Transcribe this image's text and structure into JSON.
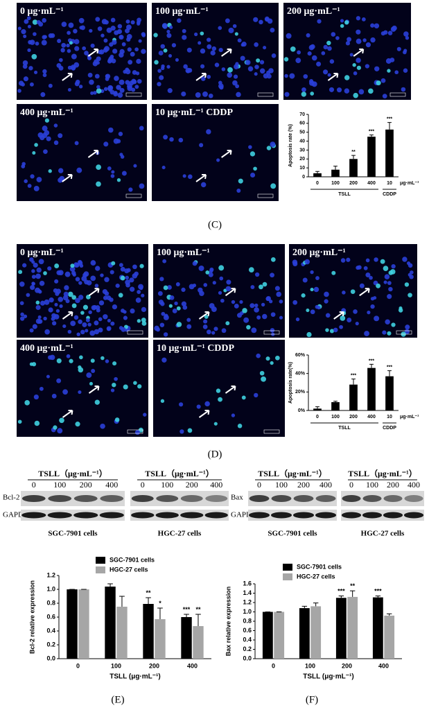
{
  "micrographs_c": {
    "labels": [
      "0 μg·mL⁻¹",
      "100 μg·mL⁻¹",
      "200 μg·mL⁻¹",
      "400 μg·mL⁻¹",
      "10 μg·mL⁻¹ CDDP"
    ],
    "caption": "(C)"
  },
  "micrographs_d": {
    "labels": [
      "0 μg·mL⁻¹",
      "100 μg·mL⁻¹",
      "200 μg·mL⁻¹",
      "400 μg·mL⁻¹",
      "10 μg·mL⁻¹ CDDP"
    ],
    "caption": "(D)"
  },
  "blot_left": {
    "protein": "Bcl-2",
    "loading": "GAPDH",
    "groups": [
      {
        "header": "TSLL（μg·mL⁻¹）",
        "lanes": [
          "0",
          "100",
          "200",
          "400"
        ],
        "cells": "SGC-7901 cells"
      },
      {
        "header": "TSLL（μg·mL⁻¹）",
        "lanes": [
          "0",
          "100",
          "200",
          "400"
        ],
        "cells": "HGC-27 cells"
      }
    ]
  },
  "blot_right": {
    "protein": "Bax",
    "loading": "GAPDH",
    "groups": [
      {
        "header": "TSLL（μg·mL⁻¹）",
        "lanes": [
          "0",
          "100",
          "200",
          "400"
        ],
        "cells": "SGC-7901 cells"
      },
      {
        "header": "TSLL（μg·mL⁻¹）",
        "lanes": [
          "0",
          "100",
          "200",
          "400"
        ],
        "cells": "HGC-27 cells"
      }
    ]
  },
  "captions": {
    "e": "(E)",
    "f": "(F)"
  },
  "chart_data": [
    {
      "type": "bar",
      "y_label": "Apoptosis rate (%)",
      "categories": [
        "0",
        "100",
        "200",
        "400",
        "10"
      ],
      "x_unit": "μg·mL⁻¹",
      "groups": [
        "TSLL",
        "CDDP"
      ],
      "values": [
        4,
        8,
        20,
        45,
        53
      ],
      "errors": [
        2,
        4,
        4,
        2,
        8
      ],
      "annotations": [
        null,
        null,
        "**",
        "***",
        "***"
      ],
      "color": "#000000",
      "ylim": [
        0,
        70
      ],
      "yticks": [
        0,
        10,
        20,
        30,
        40,
        50,
        60,
        70
      ]
    },
    {
      "type": "bar",
      "y_label": "Apoptosis rate(%)",
      "categories": [
        "0",
        "100",
        "200",
        "400",
        "10"
      ],
      "x_unit": "μg·mL⁻¹",
      "groups": [
        "TSLL",
        "CDDP"
      ],
      "values": [
        2,
        9,
        28,
        46,
        37
      ],
      "errors": [
        2,
        1,
        6,
        4,
        6
      ],
      "annotations": [
        null,
        null,
        "***",
        "***",
        "***"
      ],
      "color": "#000000",
      "ylim": [
        0,
        60
      ],
      "yticks": [
        {
          "value": 0,
          "label": "0%"
        },
        {
          "value": 20,
          "label": "20%"
        },
        {
          "value": 40,
          "label": "40%"
        },
        {
          "value": 60,
          "label": "60%"
        }
      ]
    },
    {
      "type": "bar",
      "y_label": "Bcl-2 relative expression",
      "x_label": "TSLL (μg·mL⁻¹)",
      "categories": [
        "0",
        "100",
        "200",
        "400"
      ],
      "series": [
        {
          "name": "SGC-7901 cells",
          "color": "#000000",
          "values": [
            1.0,
            1.04,
            0.79,
            0.6
          ],
          "errors": [
            0,
            0.04,
            0.09,
            0.04
          ],
          "annotations": [
            null,
            null,
            "**",
            "***"
          ]
        },
        {
          "name": "HGC-27 cells",
          "color": "#a6a6a6",
          "values": [
            1.0,
            0.75,
            0.57,
            0.47
          ],
          "errors": [
            0,
            0.15,
            0.16,
            0.17
          ],
          "annotations": [
            null,
            null,
            "*",
            "**"
          ]
        }
      ],
      "ylim": [
        0,
        1.2
      ],
      "yticks": [
        {
          "value": 0,
          "label": "0.0"
        },
        0.2,
        0.4,
        0.6,
        0.8,
        {
          "value": 1,
          "label": "1.0"
        },
        1.2
      ]
    },
    {
      "type": "bar",
      "y_label": "Bax relative expression",
      "x_label": "TSLL (μg·mL⁻¹)",
      "categories": [
        "0",
        "100",
        "200",
        "400"
      ],
      "series": [
        {
          "name": "SGC-7901 cells",
          "color": "#000000",
          "values": [
            1.0,
            1.08,
            1.3,
            1.31
          ],
          "errors": [
            0,
            0.04,
            0.04,
            0.03
          ],
          "annotations": [
            null,
            null,
            "***",
            "***"
          ]
        },
        {
          "name": "HGC-27 cells",
          "color": "#a6a6a6",
          "values": [
            1.0,
            1.12,
            1.32,
            0.92
          ],
          "errors": [
            0,
            0.07,
            0.13,
            0.04
          ],
          "annotations": [
            null,
            null,
            "**",
            null
          ]
        }
      ],
      "ylim": [
        0,
        1.6
      ],
      "yticks": [
        {
          "value": 0,
          "label": "0.0"
        },
        0.2,
        0.4,
        0.6,
        0.8,
        {
          "value": 1,
          "label": "1.0"
        },
        1.2,
        1.4,
        1.6
      ]
    }
  ]
}
